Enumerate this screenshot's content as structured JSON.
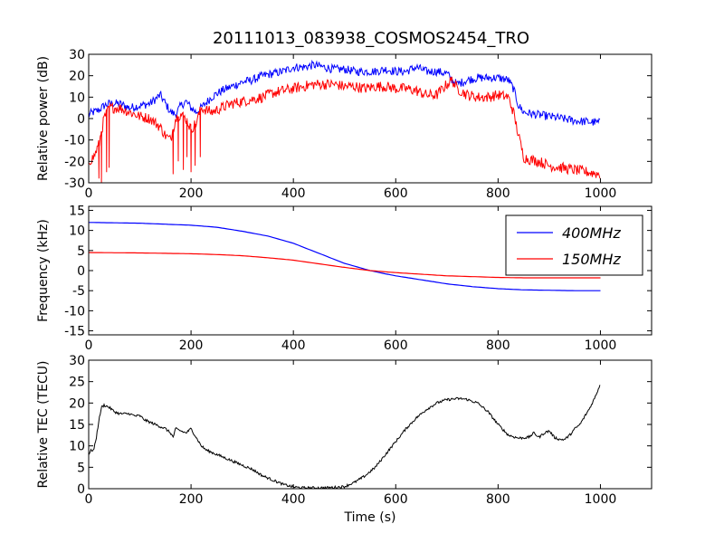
{
  "figure_title": "20111013_083938_COSMOS2454_TRO",
  "chart_data": [
    {
      "type": "line",
      "ylabel": "Relative power (dB)",
      "xlabel": "",
      "xlim": [
        0,
        1100
      ],
      "ylim": [
        -30,
        30
      ],
      "xticks": [
        0,
        200,
        400,
        600,
        800,
        1000
      ],
      "yticks": [
        -30,
        -20,
        -10,
        0,
        10,
        20,
        30
      ],
      "legend": null,
      "series": [
        {
          "color": "#0000ff",
          "noise": 2.0,
          "points": [
            [
              0,
              2
            ],
            [
              10,
              3
            ],
            [
              20,
              4
            ],
            [
              30,
              6
            ],
            [
              40,
              7
            ],
            [
              60,
              7
            ],
            [
              80,
              5
            ],
            [
              100,
              6
            ],
            [
              120,
              7
            ],
            [
              130,
              9
            ],
            [
              140,
              11
            ],
            [
              150,
              7
            ],
            [
              160,
              3
            ],
            [
              170,
              2
            ],
            [
              180,
              6
            ],
            [
              190,
              8
            ],
            [
              200,
              5
            ],
            [
              210,
              3
            ],
            [
              220,
              5
            ],
            [
              240,
              10
            ],
            [
              260,
              13
            ],
            [
              280,
              15
            ],
            [
              300,
              17
            ],
            [
              320,
              18
            ],
            [
              340,
              20
            ],
            [
              360,
              21
            ],
            [
              380,
              22
            ],
            [
              400,
              24
            ],
            [
              420,
              24
            ],
            [
              440,
              25
            ],
            [
              460,
              24
            ],
            [
              480,
              23
            ],
            [
              500,
              23
            ],
            [
              520,
              22
            ],
            [
              540,
              22
            ],
            [
              560,
              22
            ],
            [
              580,
              23
            ],
            [
              600,
              22
            ],
            [
              620,
              22
            ],
            [
              640,
              24
            ],
            [
              660,
              22
            ],
            [
              680,
              22
            ],
            [
              700,
              21
            ],
            [
              710,
              18
            ],
            [
              720,
              16
            ],
            [
              740,
              18
            ],
            [
              760,
              19
            ],
            [
              780,
              19
            ],
            [
              800,
              19
            ],
            [
              820,
              18
            ],
            [
              830,
              14
            ],
            [
              840,
              6
            ],
            [
              850,
              3
            ],
            [
              870,
              2
            ],
            [
              900,
              1
            ],
            [
              950,
              -1
            ],
            [
              1000,
              -2
            ]
          ]
        },
        {
          "color": "#ff0000",
          "noise": 2.5,
          "points": [
            [
              0,
              -20
            ],
            [
              10,
              -18
            ],
            [
              20,
              -12
            ],
            [
              30,
              0
            ],
            [
              40,
              5
            ],
            [
              60,
              5
            ],
            [
              80,
              3
            ],
            [
              100,
              1
            ],
            [
              120,
              0
            ],
            [
              140,
              -4
            ],
            [
              150,
              -8
            ],
            [
              160,
              -10
            ],
            [
              170,
              0
            ],
            [
              180,
              2
            ],
            [
              190,
              0
            ],
            [
              200,
              -5
            ],
            [
              210,
              -2
            ],
            [
              220,
              5
            ],
            [
              240,
              3
            ],
            [
              260,
              5
            ],
            [
              280,
              7
            ],
            [
              300,
              8
            ],
            [
              320,
              9
            ],
            [
              340,
              10
            ],
            [
              360,
              12
            ],
            [
              380,
              13
            ],
            [
              400,
              14
            ],
            [
              420,
              15
            ],
            [
              440,
              16
            ],
            [
              460,
              16
            ],
            [
              480,
              16
            ],
            [
              500,
              15
            ],
            [
              520,
              15
            ],
            [
              540,
              14
            ],
            [
              560,
              15
            ],
            [
              580,
              15
            ],
            [
              600,
              14
            ],
            [
              620,
              14
            ],
            [
              640,
              13
            ],
            [
              660,
              11
            ],
            [
              680,
              11
            ],
            [
              700,
              16
            ],
            [
              710,
              18
            ],
            [
              720,
              14
            ],
            [
              740,
              11
            ],
            [
              760,
              10
            ],
            [
              780,
              10
            ],
            [
              800,
              11
            ],
            [
              820,
              10
            ],
            [
              830,
              3
            ],
            [
              840,
              -8
            ],
            [
              850,
              -18
            ],
            [
              860,
              -19
            ],
            [
              880,
              -20
            ],
            [
              900,
              -22
            ],
            [
              950,
              -24
            ],
            [
              1000,
              -26
            ]
          ],
          "dips": [
            [
              20,
              -28
            ],
            [
              25,
              -30
            ],
            [
              35,
              -25
            ],
            [
              40,
              -23
            ],
            [
              165,
              -26
            ],
            [
              175,
              -20
            ],
            [
              185,
              -24
            ],
            [
              192,
              -18
            ],
            [
              200,
              -25
            ],
            [
              208,
              -22
            ],
            [
              218,
              -18
            ]
          ]
        }
      ]
    },
    {
      "type": "line",
      "ylabel": "Frequency (kHz)",
      "xlabel": "",
      "xlim": [
        0,
        1100
      ],
      "ylim": [
        -16,
        16
      ],
      "xticks": [
        0,
        200,
        400,
        600,
        800,
        1000
      ],
      "yticks": [
        -15,
        -10,
        -5,
        0,
        5,
        10,
        15
      ],
      "legend": "top-right",
      "series": [
        {
          "name": "400MHz",
          "color": "#0000ff",
          "noise": 0,
          "points": [
            [
              0,
              12
            ],
            [
              100,
              11.8
            ],
            [
              200,
              11.3
            ],
            [
              250,
              10.8
            ],
            [
              300,
              9.8
            ],
            [
              350,
              8.6
            ],
            [
              400,
              6.8
            ],
            [
              450,
              4.3
            ],
            [
              500,
              1.8
            ],
            [
              550,
              0
            ],
            [
              580,
              -0.8
            ],
            [
              600,
              -1.3
            ],
            [
              650,
              -2.3
            ],
            [
              700,
              -3.3
            ],
            [
              750,
              -4
            ],
            [
              800,
              -4.5
            ],
            [
              850,
              -4.8
            ],
            [
              900,
              -4.9
            ],
            [
              950,
              -5
            ],
            [
              1000,
              -5
            ]
          ]
        },
        {
          "name": "150MHz",
          "color": "#ff0000",
          "noise": 0,
          "points": [
            [
              0,
              4.5
            ],
            [
              100,
              4.4
            ],
            [
              200,
              4.2
            ],
            [
              250,
              4
            ],
            [
              300,
              3.7
            ],
            [
              350,
              3.2
            ],
            [
              400,
              2.6
            ],
            [
              450,
              1.7
            ],
            [
              500,
              0.8
            ],
            [
              550,
              0
            ],
            [
              600,
              -0.5
            ],
            [
              650,
              -0.9
            ],
            [
              700,
              -1.3
            ],
            [
              750,
              -1.5
            ],
            [
              800,
              -1.7
            ],
            [
              850,
              -1.8
            ],
            [
              900,
              -1.8
            ],
            [
              1000,
              -1.8
            ]
          ]
        }
      ]
    },
    {
      "type": "line",
      "ylabel": "Relative TEC (TECU)",
      "xlabel": "Time (s)",
      "xlim": [
        0,
        1100
      ],
      "ylim": [
        0,
        30
      ],
      "xticks": [
        0,
        200,
        400,
        600,
        800,
        1000
      ],
      "yticks": [
        0,
        5,
        10,
        15,
        20,
        25,
        30
      ],
      "legend": null,
      "series": [
        {
          "color": "#000000",
          "noise": 0.3,
          "points": [
            [
              0,
              8
            ],
            [
              5,
              9
            ],
            [
              10,
              9
            ],
            [
              15,
              12
            ],
            [
              20,
              16
            ],
            [
              25,
              19
            ],
            [
              30,
              19.5
            ],
            [
              40,
              19
            ],
            [
              50,
              18
            ],
            [
              60,
              17.5
            ],
            [
              80,
              17.5
            ],
            [
              90,
              17
            ],
            [
              100,
              17
            ],
            [
              110,
              16
            ],
            [
              130,
              15
            ],
            [
              150,
              14
            ],
            [
              160,
              13
            ],
            [
              165,
              12
            ],
            [
              170,
              14
            ],
            [
              180,
              13.5
            ],
            [
              190,
              13
            ],
            [
              200,
              14
            ],
            [
              205,
              13
            ],
            [
              210,
              12
            ],
            [
              215,
              11
            ],
            [
              220,
              10
            ],
            [
              230,
              9
            ],
            [
              250,
              8
            ],
            [
              280,
              6.5
            ],
            [
              300,
              5.5
            ],
            [
              320,
              4.5
            ],
            [
              340,
              3
            ],
            [
              360,
              2
            ],
            [
              380,
              1
            ],
            [
              400,
              0.4
            ],
            [
              420,
              0.2
            ],
            [
              440,
              0.2
            ],
            [
              460,
              0.2
            ],
            [
              480,
              0.3
            ],
            [
              500,
              0.5
            ],
            [
              520,
              1.5
            ],
            [
              540,
              3
            ],
            [
              560,
              5
            ],
            [
              580,
              8
            ],
            [
              600,
              11
            ],
            [
              620,
              14
            ],
            [
              640,
              16.5
            ],
            [
              660,
              18.5
            ],
            [
              680,
              20
            ],
            [
              700,
              20.8
            ],
            [
              720,
              21
            ],
            [
              730,
              21
            ],
            [
              740,
              20.8
            ],
            [
              760,
              20
            ],
            [
              780,
              18
            ],
            [
              800,
              15
            ],
            [
              820,
              12.5
            ],
            [
              840,
              11.8
            ],
            [
              860,
              12
            ],
            [
              870,
              13
            ],
            [
              880,
              12
            ],
            [
              890,
              13
            ],
            [
              900,
              13.5
            ],
            [
              910,
              12
            ],
            [
              920,
              11.5
            ],
            [
              930,
              11.5
            ],
            [
              940,
              12.5
            ],
            [
              950,
              14
            ],
            [
              960,
              15
            ],
            [
              970,
              17
            ],
            [
              980,
              19
            ],
            [
              990,
              21.5
            ],
            [
              1000,
              24.5
            ]
          ]
        }
      ]
    }
  ]
}
